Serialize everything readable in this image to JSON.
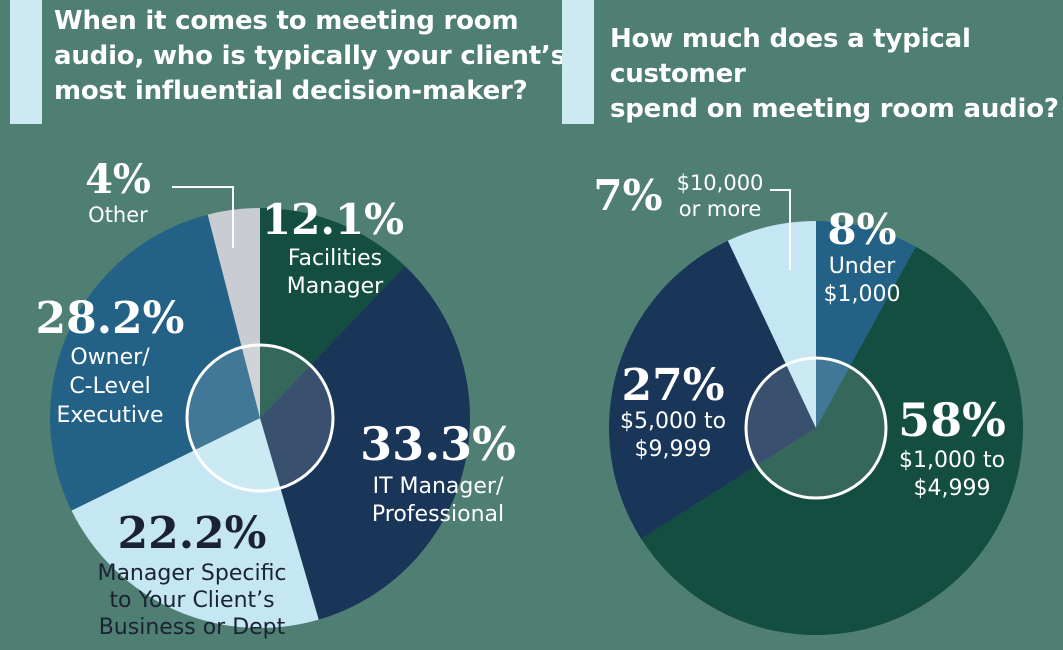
{
  "left_title": [
    "When it comes to meeting room",
    "audio, who is typically your client’s",
    "most influential decision-maker?"
  ],
  "right_title": [
    "How much does a typical customer",
    "spend on meeting room audio?"
  ],
  "colors": {
    "background": "#4f7f72",
    "accent": "#cdeaf2",
    "dark_green": "#144e41",
    "navy": "#193558",
    "steel_blue": "#236286",
    "pale_blue": "#c4e7f3",
    "light_gray": "#c9ccd2"
  },
  "chart_data": [
    {
      "type": "pie",
      "title": "When it comes to meeting room audio, who is typically your client’s most influential decision-maker?",
      "slices": [
        {
          "name": "Facilities Manager",
          "value": 12.1,
          "pct_label": "12.1%",
          "label_lines": [
            "Facilities",
            "Manager"
          ],
          "color": "#144e41"
        },
        {
          "name": "IT Manager/Professional",
          "value": 33.3,
          "pct_label": "33.3%",
          "label_lines": [
            "IT Manager/",
            "Professional"
          ],
          "color": "#193558"
        },
        {
          "name": "Manager Specific to Your Client’s Business or Dept",
          "value": 22.2,
          "pct_label": "22.2%",
          "label_lines": [
            "Manager Specific",
            "to Your Client’s",
            "Business or Dept"
          ],
          "color": "#c4e7f3"
        },
        {
          "name": "Owner/C-Level Executive",
          "value": 28.2,
          "pct_label": "28.2%",
          "label_lines": [
            "Owner/",
            "C-Level",
            "Executive"
          ],
          "color": "#236286"
        },
        {
          "name": "Other",
          "value": 4,
          "pct_label": "4%",
          "label_lines": [
            "Other"
          ],
          "color": "#c9ccd2"
        }
      ]
    },
    {
      "type": "pie",
      "title": "How much does a typical customer spend on meeting room audio?",
      "slices": [
        {
          "name": "Under $1,000",
          "value": 8,
          "pct_label": "8%",
          "label_lines": [
            "Under",
            "$1,000"
          ],
          "color": "#236286"
        },
        {
          "name": "$1,000 to $4,999",
          "value": 58,
          "pct_label": "58%",
          "label_lines": [
            "$1,000 to",
            "$4,999"
          ],
          "color": "#144e41"
        },
        {
          "name": "$5,000 to $9,999",
          "value": 27,
          "pct_label": "27%",
          "label_lines": [
            "$5,000 to",
            "$9,999"
          ],
          "color": "#193558"
        },
        {
          "name": "$10,000 or more",
          "value": 7,
          "pct_label": "7%",
          "label_lines": [
            "$10,000",
            "or more"
          ],
          "color": "#c4e7f3"
        }
      ]
    }
  ]
}
